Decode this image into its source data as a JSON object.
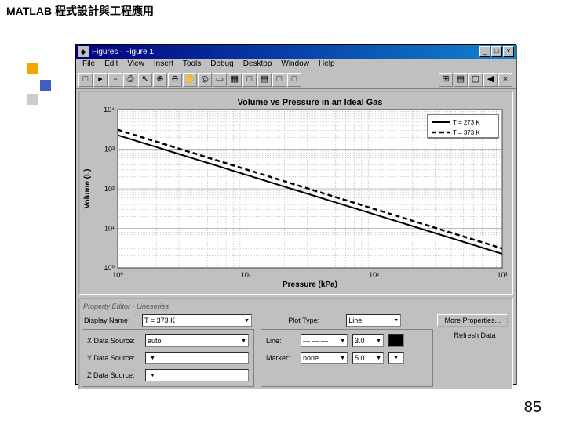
{
  "page": {
    "title": "MATLAB 程式設計與工程應用",
    "number": "85"
  },
  "deco": {
    "colors": [
      "#f0a800",
      "#4060c0",
      "#cccccc"
    ]
  },
  "window": {
    "title": "Figures - Figure 1",
    "ctrl_min": "_",
    "ctrl_max": "□",
    "ctrl_close": "×",
    "menus": [
      "File",
      "Edit",
      "View",
      "Insert",
      "Tools",
      "Debug",
      "Desktop",
      "Window",
      "Help"
    ],
    "toolbar_left": [
      "□",
      "▸",
      "▫",
      "⎙",
      "↖",
      "⊕",
      "⊖",
      "✋",
      "◎",
      "▭",
      "▦",
      "□",
      "▤",
      "□",
      "□"
    ],
    "toolbar_right": [
      "⊞",
      "▤",
      "▢",
      "◀",
      "×"
    ]
  },
  "chart": {
    "type": "line",
    "title": "Volume vs Pressure in an Ideal Gas",
    "xlabel": "Pressure (kPa)",
    "ylabel": "Volume (L)",
    "x_log": true,
    "y_log": true,
    "x_ticks": [
      1,
      10,
      100,
      1000
    ],
    "x_tick_labels": [
      "10⁰",
      "10¹",
      "10²",
      "10³"
    ],
    "y_ticks": [
      1,
      10,
      100,
      1000,
      10000
    ],
    "y_tick_labels": [
      "10⁰",
      "10¹",
      "10²",
      "10³",
      "10⁴"
    ],
    "legend": [
      "T = 273 K",
      "T = 373 K"
    ],
    "series": [
      {
        "name": "T = 273 K",
        "dash": "solid",
        "color": "#000000",
        "width": 2,
        "points": [
          [
            1,
            2269
          ],
          [
            3,
            756
          ],
          [
            10,
            227
          ],
          [
            30,
            75.6
          ],
          [
            100,
            22.7
          ],
          [
            300,
            7.56
          ],
          [
            1000,
            2.27
          ]
        ]
      },
      {
        "name": "T = 373 K",
        "dash": "6,4",
        "color": "#000000",
        "width": 2.5,
        "points": [
          [
            1,
            3100
          ],
          [
            3,
            1034
          ],
          [
            10,
            310
          ],
          [
            30,
            103
          ],
          [
            100,
            31
          ],
          [
            300,
            10.3
          ],
          [
            1000,
            3.1
          ]
        ]
      }
    ],
    "bg": "#ffffff",
    "grid_color": "#777777",
    "axis_color": "#000000",
    "title_fontsize": 11,
    "label_fontsize": 10,
    "tick_fontsize": 9
  },
  "prop": {
    "title": "Property Editor - Lineseries",
    "display_name_label": "Display Name:",
    "display_name": "T = 373 K",
    "plot_type_label": "Plot Type:",
    "plot_type": "Line",
    "more": "More Properties...",
    "refresh": "Refresh Data",
    "x_label": "X Data Source:",
    "x_val": "auto",
    "y_label": "Y Data Source:",
    "y_val": "",
    "z_label": "Z Data Source:",
    "z_val": "",
    "line_label": "Line:",
    "line_style": "— — —",
    "line_w": "3.0",
    "marker_label": "Marker:",
    "marker_style": "none",
    "marker_w": "5.0"
  }
}
